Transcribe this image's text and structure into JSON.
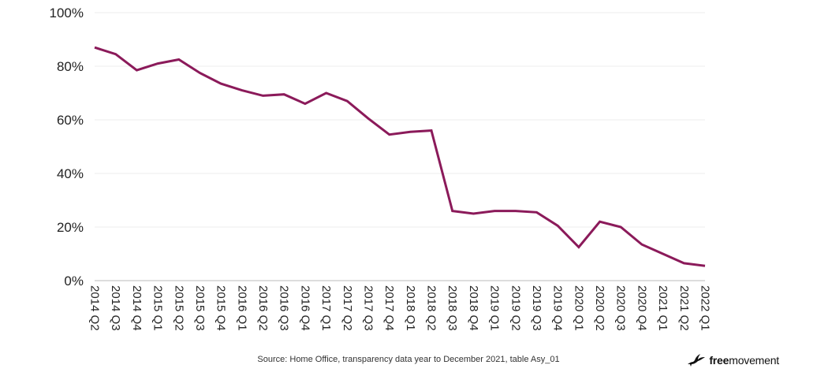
{
  "chart_data": {
    "type": "line",
    "title": "",
    "xlabel": "",
    "ylabel": "",
    "categories": [
      "2014 Q2",
      "2014 Q3",
      "2014 Q4",
      "2015 Q1",
      "2015 Q2",
      "2015 Q3",
      "2015 Q4",
      "2016 Q1",
      "2016 Q2",
      "2016 Q3",
      "2016 Q4",
      "2017 Q1",
      "2017 Q2",
      "2017 Q3",
      "2017 Q4",
      "2018 Q1",
      "2018 Q2",
      "2018 Q3",
      "2018 Q4",
      "2019 Q1",
      "2019 Q2",
      "2019 Q3",
      "2019 Q4",
      "2020 Q1",
      "2020 Q2",
      "2020 Q3",
      "2020 Q4",
      "2021 Q1",
      "2021 Q2",
      "2022 Q1"
    ],
    "series": [
      {
        "values": [
          87,
          84.5,
          78.5,
          81,
          82.5,
          77.5,
          73.5,
          71,
          69,
          69.5,
          66,
          70,
          67,
          60.5,
          54.5,
          55.5,
          56,
          26,
          25,
          26,
          26,
          25.5,
          20.5,
          12.5,
          22,
          20,
          13.5,
          10,
          6.5,
          5.5
        ],
        "color": "#8b1a5a"
      }
    ],
    "ylim": [
      0,
      100
    ],
    "yticks": [
      0,
      20,
      40,
      60,
      80,
      100
    ],
    "ytick_labels": [
      "0%",
      "20%",
      "40%",
      "60%",
      "80%",
      "100%"
    ],
    "grid": true,
    "gridColor": "#ececec",
    "axisColor": "#bbbbbb"
  },
  "footer": {
    "source": "Source: Home Office, transparency data year to December 2021, table Asy_01",
    "brand_free": "free",
    "brand_movement": "movement",
    "brand_icon": "bird-icon"
  }
}
